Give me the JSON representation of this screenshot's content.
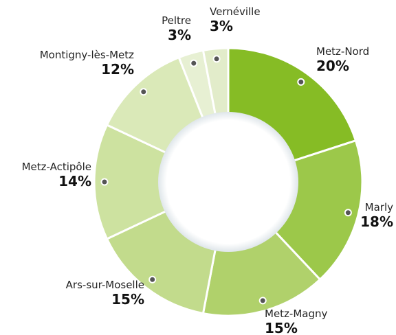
{
  "chart_data": {
    "type": "donut",
    "categories": [
      "Metz-Nord",
      "Marly",
      "Metz-Magny",
      "Ars-sur-Moselle",
      "Metz-Actipôle",
      "Montigny-lès-Metz",
      "Peltre",
      "Vernéville"
    ],
    "values": [
      20,
      18,
      15,
      15,
      14,
      12,
      3,
      3
    ],
    "value_labels": [
      "20%",
      "18%",
      "15%",
      "15%",
      "14%",
      "12%",
      "3%",
      "3%"
    ],
    "colors": [
      "#86bc25",
      "#9cc84a",
      "#b0d16b",
      "#c2db8c",
      "#cde2a0",
      "#dae9b8",
      "#e7f0d3",
      "#e2ecca"
    ]
  }
}
